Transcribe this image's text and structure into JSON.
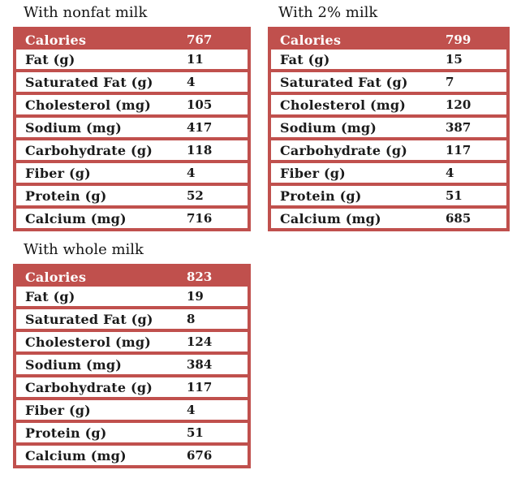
{
  "colors": {
    "accent": "#C0504D",
    "header_text": "#FFFFFF",
    "body_text": "#1A1A1A",
    "background": "#FFFFFF"
  },
  "chart_data": [
    {
      "type": "table",
      "title": "With nonfat milk",
      "labels": [
        "Calories",
        "Fat (g)",
        "Saturated Fat (g)",
        "Cholesterol (mg)",
        "Sodium (mg)",
        "Carbohydrate (g)",
        "Fiber (g)",
        "Protein (g)",
        "Calcium (mg)"
      ],
      "values": [
        "767",
        "11",
        "4",
        "105",
        "417",
        "118",
        "4",
        "52",
        "716"
      ]
    },
    {
      "type": "table",
      "title": "With 2% milk",
      "labels": [
        "Calories",
        "Fat (g)",
        "Saturated Fat (g)",
        "Cholesterol (mg)",
        "Sodium (mg)",
        "Carbohydrate (g)",
        "Fiber (g)",
        "Protein (g)",
        "Calcium (mg)"
      ],
      "values": [
        "799",
        "15",
        "7",
        "120",
        "387",
        "117",
        "4",
        "51",
        "685"
      ]
    },
    {
      "type": "table",
      "title": "With whole milk",
      "labels": [
        "Calories",
        "Fat (g)",
        "Saturated Fat (g)",
        "Cholesterol (mg)",
        "Sodium (mg)",
        "Carbohydrate (g)",
        "Fiber (g)",
        "Protein (g)",
        "Calcium (mg)"
      ],
      "values": [
        "823",
        "19",
        "8",
        "124",
        "384",
        "117",
        "4",
        "51",
        "676"
      ]
    }
  ]
}
